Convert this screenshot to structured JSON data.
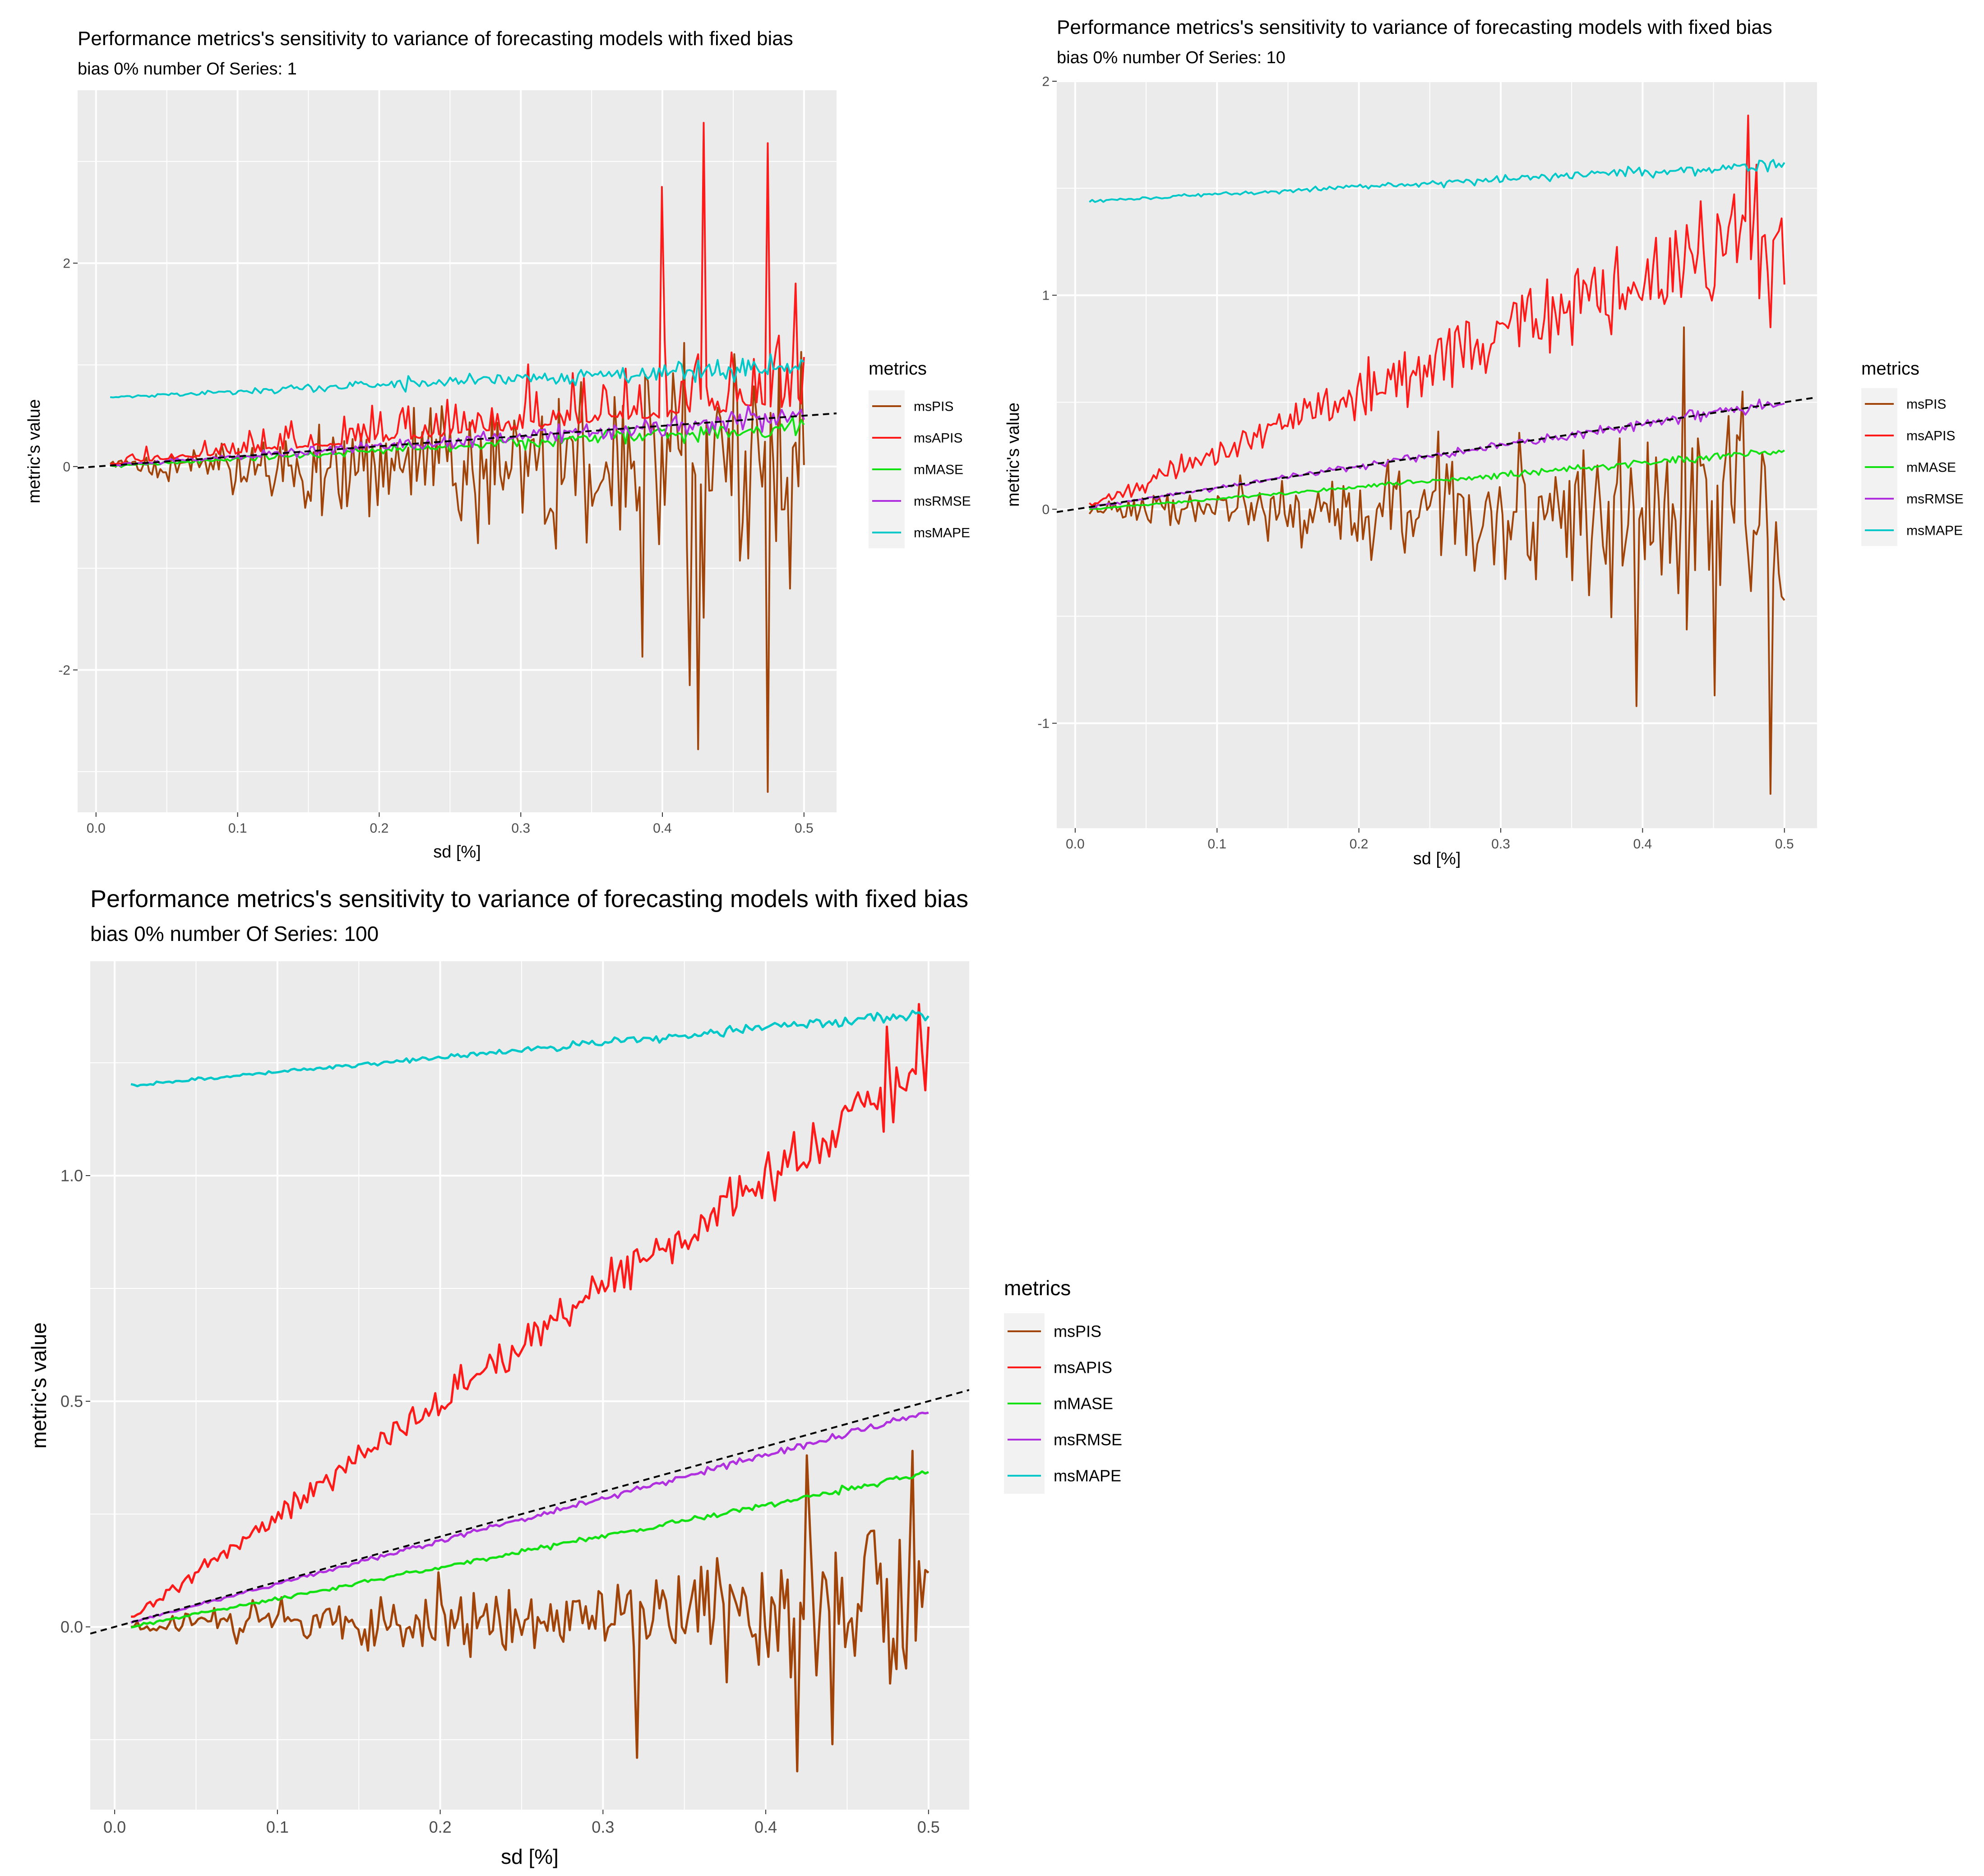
{
  "chart_data": [
    {
      "type": "line",
      "title": "Performance metrics's sensitivity to variance of forecasting models with fixed bias",
      "subtitle": "bias 0% number Of Series: 1",
      "xlabel": "sd [%]",
      "ylabel": "metric's value",
      "xlim": [
        -0.013,
        0.523
      ],
      "ylim": [
        -3.4,
        3.7
      ],
      "x_ticks": [
        "0.0",
        "0.1",
        "0.2",
        "0.3",
        "0.4",
        "0.5"
      ],
      "y_ticks": [
        "-2",
        "0",
        "2"
      ],
      "legend": {
        "title": "metrics",
        "position": "right",
        "entries": [
          "msPIS",
          "msAPIS",
          "mMASE",
          "msRMSE",
          "msMAPE"
        ]
      },
      "reference_line": {
        "style": "dashed",
        "intercept": 0,
        "slope": 1
      },
      "series": [
        {
          "name": "msPIS",
          "color": "#a0440a",
          "pattern": "noisy",
          "start": 0,
          "end": 0,
          "noise_start": 0.05,
          "noise_end": 0.9,
          "center": 0,
          "extremes": [
            [
              0.385,
              -1.87
            ],
            [
              0.42,
              -2.15
            ],
            [
              0.425,
              -2.78
            ],
            [
              0.475,
              -3.2
            ],
            [
              0.49,
              -1.2
            ]
          ]
        },
        {
          "name": "msAPIS",
          "color": "#ff1a1a",
          "pattern": "noisy",
          "start": 0.02,
          "end": 0.6,
          "noise_start": 0.05,
          "noise_end": 0.55,
          "center": 0.5,
          "extremes": [
            [
              0.4,
              2.75
            ],
            [
              0.43,
              3.38
            ],
            [
              0.475,
              3.18
            ],
            [
              0.495,
              1.8
            ]
          ]
        },
        {
          "name": "mMASE",
          "color": "#11e011",
          "pattern": "noisy",
          "start": 0.0,
          "end": 0.4,
          "noise_start": 0.01,
          "noise_end": 0.07,
          "center": 0,
          "extremes": []
        },
        {
          "name": "msRMSE",
          "color": "#b030e0",
          "pattern": "noisy",
          "start": 0.01,
          "end": 0.5,
          "noise_start": 0.01,
          "noise_end": 0.09,
          "center": 0,
          "extremes": []
        },
        {
          "name": "msMAPE",
          "color": "#00c8c8",
          "pattern": "noisy",
          "start": 0.68,
          "end": 1.0,
          "noise_start": 0.005,
          "noise_end": 0.1,
          "center": 0,
          "extremes": []
        }
      ]
    },
    {
      "type": "line",
      "title": "Performance metrics's sensitivity to variance of forecasting models with fixed bias",
      "subtitle": "bias 0% number Of Series: 10",
      "xlabel": "sd [%]",
      "ylabel": "metric's value",
      "xlim": [
        -0.013,
        0.523
      ],
      "ylim": [
        -1.49,
        2.0
      ],
      "x_ticks": [
        "0.0",
        "0.1",
        "0.2",
        "0.3",
        "0.4",
        "0.5"
      ],
      "y_ticks": [
        "-1",
        "0",
        "1",
        "2"
      ],
      "legend": {
        "title": "metrics",
        "position": "right",
        "entries": [
          "msPIS",
          "msAPIS",
          "mMASE",
          "msRMSE",
          "msMAPE"
        ]
      },
      "reference_line": {
        "style": "dashed",
        "intercept": 0,
        "slope": 1
      },
      "series": [
        {
          "name": "msPIS",
          "color": "#a0440a",
          "pattern": "noisy",
          "start": 0,
          "end": 0,
          "noise_start": 0.02,
          "noise_end": 0.38,
          "center": 0,
          "extremes": [
            [
              0.395,
              -0.92
            ],
            [
              0.43,
              0.85
            ],
            [
              0.45,
              -0.87
            ],
            [
              0.49,
              -1.33
            ],
            [
              0.47,
              0.55
            ]
          ]
        },
        {
          "name": "msAPIS",
          "color": "#ff1a1a",
          "pattern": "noisy",
          "start": 0.02,
          "end": 1.35,
          "noise_start": 0.015,
          "noise_end": 0.22,
          "center": 0,
          "extremes": [
            [
              0.475,
              1.84
            ],
            [
              0.49,
              0.85
            ],
            [
              0.5,
              1.05
            ]
          ]
        },
        {
          "name": "mMASE",
          "color": "#11e011",
          "pattern": "noisy",
          "start": 0.0,
          "end": 0.27,
          "noise_start": 0.003,
          "noise_end": 0.015,
          "center": 0,
          "extremes": []
        },
        {
          "name": "msRMSE",
          "color": "#b030e0",
          "pattern": "noisy",
          "start": 0.01,
          "end": 0.5,
          "noise_start": 0.004,
          "noise_end": 0.025,
          "center": 0,
          "extremes": []
        },
        {
          "name": "msMAPE",
          "color": "#00c8c8",
          "pattern": "noisy",
          "start": 1.44,
          "end": 1.61,
          "noise_start": 0.004,
          "noise_end": 0.02,
          "center": 0,
          "extremes": []
        }
      ]
    },
    {
      "type": "line",
      "title": "Performance metrics's sensitivity to variance of forecasting models with fixed bias",
      "subtitle": "bias 0% number Of Series: 100",
      "xlabel": "sd [%]",
      "ylabel": "metric's value",
      "xlim": [
        -0.015,
        0.525
      ],
      "ylim": [
        -0.405,
        1.475
      ],
      "x_ticks": [
        "0.0",
        "0.1",
        "0.2",
        "0.3",
        "0.4",
        "0.5"
      ],
      "y_ticks": [
        "0.0",
        "0.5",
        "1.0"
      ],
      "legend": {
        "title": "metrics",
        "position": "right",
        "entries": [
          "msPIS",
          "msAPIS",
          "mMASE",
          "msRMSE",
          "msMAPE"
        ]
      },
      "reference_line": {
        "style": "dashed",
        "intercept": 0,
        "slope": 1
      },
      "series": [
        {
          "name": "msPIS",
          "color": "#a0440a",
          "pattern": "noisy",
          "start": 0.0,
          "end": 0.05,
          "noise_start": 0.01,
          "noise_end": 0.13,
          "center": 0,
          "extremes": [
            [
              0.32,
              -0.29
            ],
            [
              0.42,
              -0.32
            ],
            [
              0.425,
              0.38
            ],
            [
              0.44,
              -0.26
            ],
            [
              0.49,
              0.39
            ],
            [
              0.5,
              0.12
            ]
          ]
        },
        {
          "name": "msAPIS",
          "color": "#ff1a1a",
          "pattern": "noisy",
          "start": 0.02,
          "end": 1.25,
          "noise_start": 0.008,
          "noise_end": 0.06,
          "center": 0,
          "extremes": [
            [
              0.475,
              1.33
            ],
            [
              0.495,
              1.38
            ],
            [
              0.5,
              1.33
            ]
          ]
        },
        {
          "name": "mMASE",
          "color": "#11e011",
          "pattern": "noisy",
          "start": 0.0,
          "end": 0.34,
          "noise_start": 0.002,
          "noise_end": 0.006,
          "center": 0,
          "extremes": []
        },
        {
          "name": "msRMSE",
          "color": "#b030e0",
          "pattern": "noisy",
          "start": 0.01,
          "end": 0.475,
          "noise_start": 0.002,
          "noise_end": 0.007,
          "center": 0,
          "extremes": []
        },
        {
          "name": "msMAPE",
          "color": "#00c8c8",
          "pattern": "noisy",
          "start": 1.2,
          "end": 1.36,
          "noise_start": 0.002,
          "noise_end": 0.01,
          "center": 0,
          "extremes": []
        }
      ]
    }
  ]
}
